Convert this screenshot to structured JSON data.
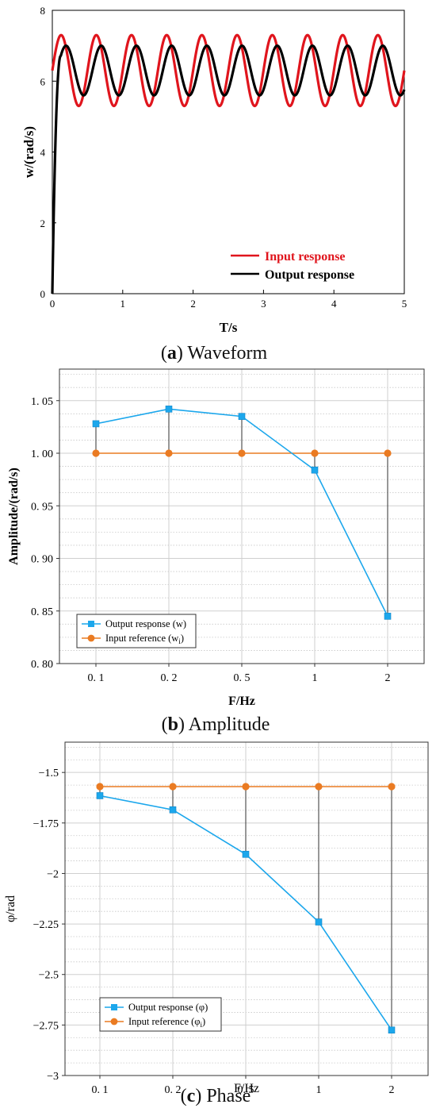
{
  "chart_data": [
    {
      "type": "line",
      "caption": {
        "letter": "a",
        "text": "Waveform"
      },
      "xlabel": "T/s",
      "ylabel": "w/(rad/s)",
      "xlim": [
        0,
        5
      ],
      "ylim": [
        0,
        8
      ],
      "xticks": [
        "0",
        "1",
        "2",
        "3",
        "4",
        "5"
      ],
      "yticks": [
        "0",
        "2",
        "4",
        "6",
        "8"
      ],
      "grid": false,
      "legend_position": "bottom-right",
      "colors": {
        "input": "#e0151d",
        "output": "#000000"
      },
      "series": [
        {
          "name": "Input response",
          "kind": "sine",
          "offset": 6.3,
          "amplitude": 1.0,
          "frequency_hz": 2,
          "phase_at_t0": 0.0
        },
        {
          "name": "Output response",
          "kind": "step_then_sine",
          "offset": 6.3,
          "amplitude": 0.7,
          "frequency_hz": 2,
          "rise_time_s": 0.12,
          "lag_s": 0.07
        }
      ]
    },
    {
      "type": "line",
      "caption": {
        "letter": "b",
        "text": "Amplitude"
      },
      "xlabel": "F/Hz",
      "ylabel": "Amplitude/(rad/s)",
      "categories": [
        "0. 1",
        "0. 2",
        "0. 5",
        "1",
        "2"
      ],
      "ylim": [
        0.8,
        1.08
      ],
      "yticks": [
        "0. 80",
        "0. 85",
        "0. 90",
        "0. 95",
        "1. 00",
        "1. 05"
      ],
      "grid": true,
      "legend_position": "bottom-left",
      "colors": {
        "output": "#1ca7ec",
        "input": "#ea7b22"
      },
      "series": [
        {
          "name": "Output response (w)",
          "marker": "square",
          "values": [
            1.028,
            1.042,
            1.035,
            0.984,
            0.845
          ]
        },
        {
          "name": "Input reference (w",
          "name_sub": "i",
          "name_end": ")",
          "marker": "circle",
          "values": [
            1.0,
            1.0,
            1.0,
            1.0,
            1.0
          ]
        }
      ]
    },
    {
      "type": "line",
      "caption": {
        "letter": "c",
        "text": "Phase"
      },
      "xlabel": "F/Hz",
      "ylabel": "φ/rad",
      "categories": [
        "0. 1",
        "0. 2",
        "0. 5",
        "1",
        "2"
      ],
      "ylim": [
        -3.0,
        -1.35
      ],
      "yticks": [
        "−3",
        "−2.75",
        "−2.5",
        "−2.25",
        "−2",
        "−1.75",
        "−1.5"
      ],
      "grid": true,
      "legend_position": "bottom-left",
      "colors": {
        "output": "#1ca7ec",
        "input": "#ea7b22"
      },
      "series": [
        {
          "name": "Output response (φ)",
          "marker": "square",
          "values": [
            -1.615,
            -1.685,
            -1.905,
            -2.24,
            -2.775
          ]
        },
        {
          "name": "Input reference (φ",
          "name_sub": "i",
          "name_end": ")",
          "marker": "circle",
          "values": [
            -1.57,
            -1.57,
            -1.57,
            -1.57,
            -1.57
          ]
        }
      ]
    }
  ]
}
